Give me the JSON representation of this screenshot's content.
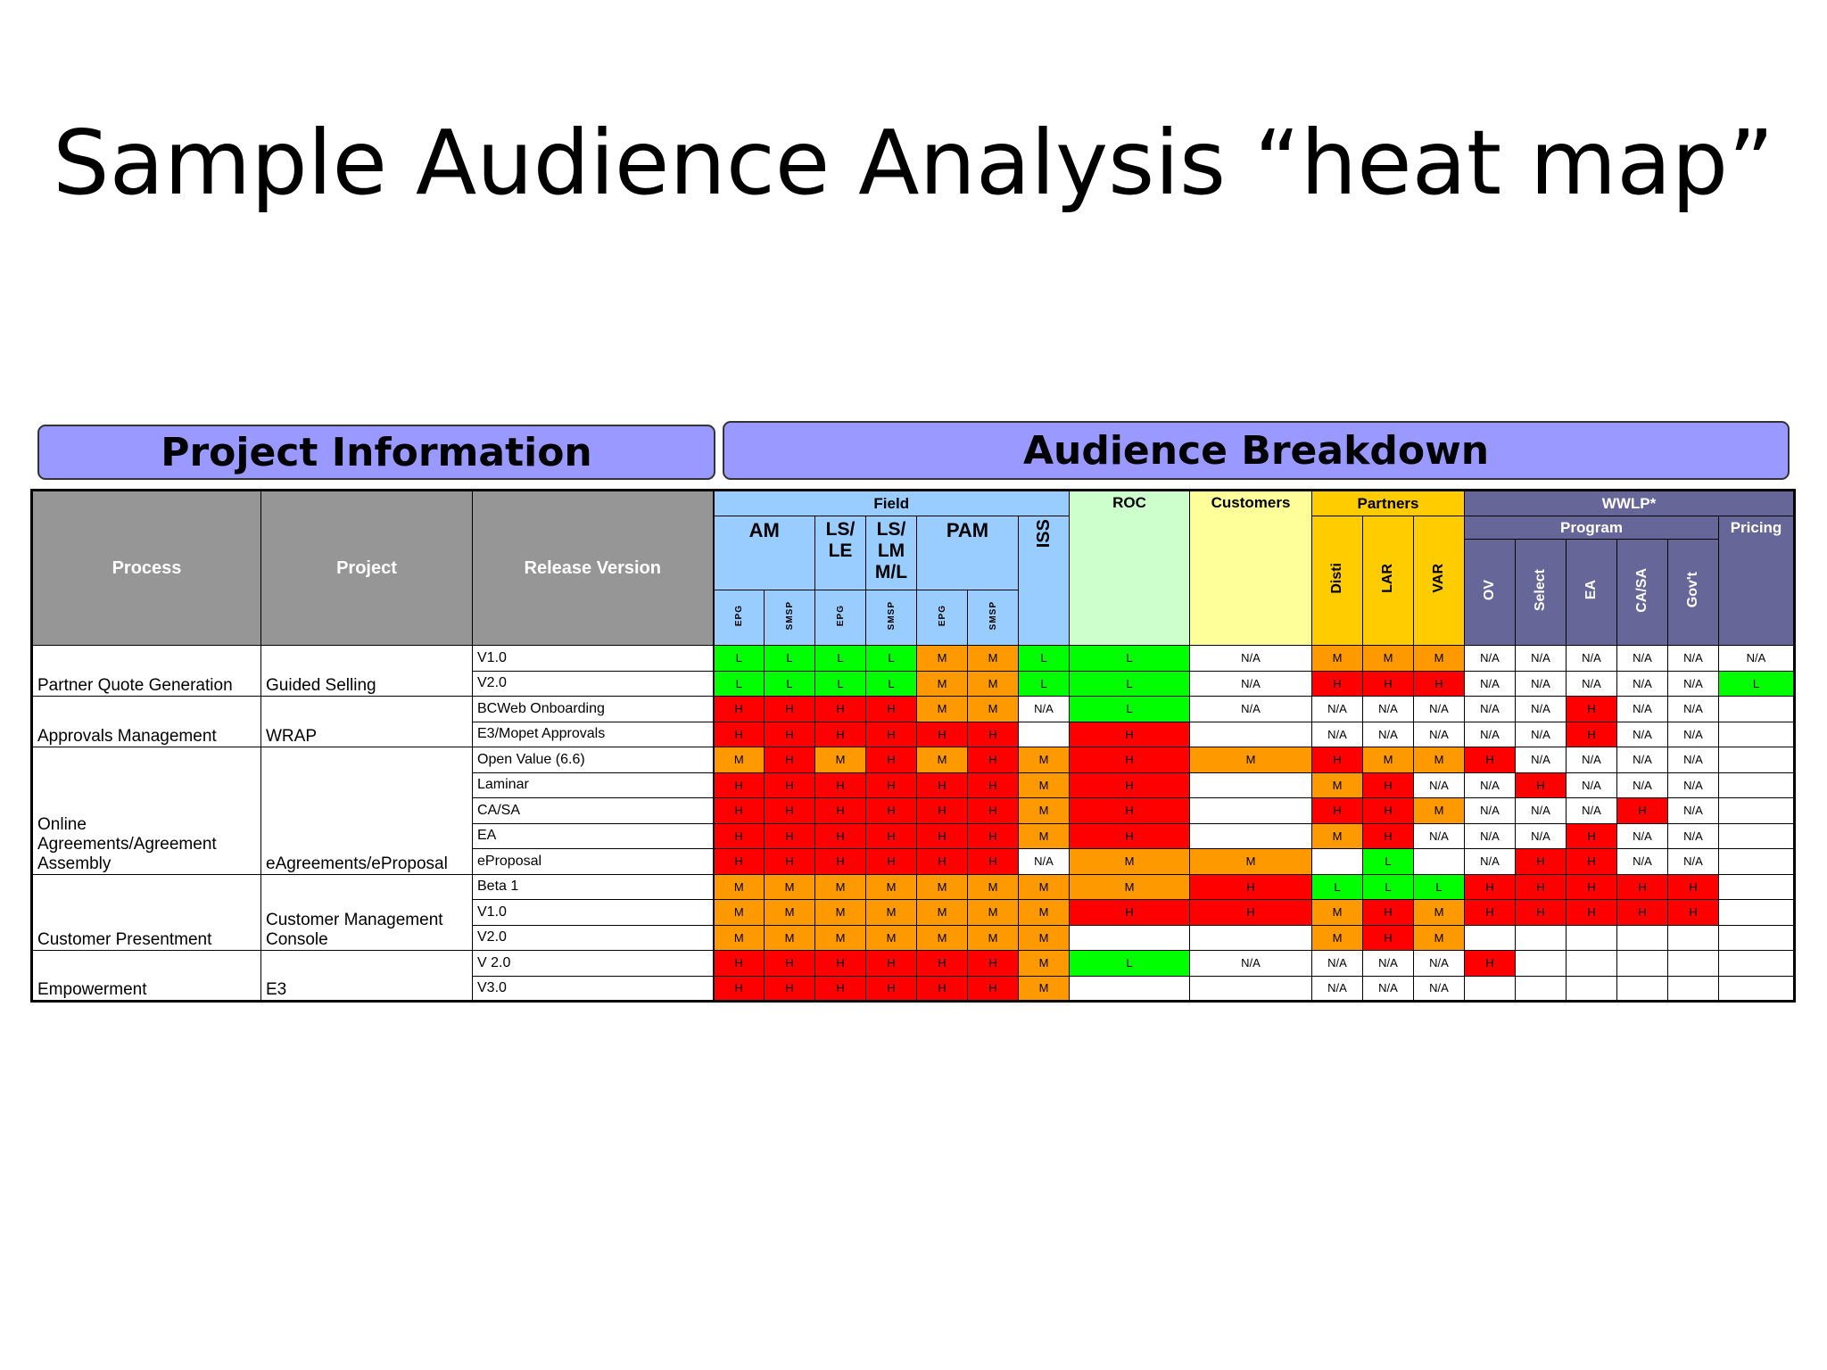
{
  "title": "Sample Audience Analysis “heat map”",
  "headers": {
    "project_information": "Project Information",
    "audience_breakdown": "Audience Breakdown"
  },
  "table": {
    "columns": {
      "process": "Process",
      "project": "Project",
      "release_version": "Release Version"
    },
    "groups": {
      "field": "Field",
      "am": "AM",
      "lsi_le": "LS/ LE",
      "lsi_lm": "LS/ LM M/L",
      "pam": "PAM",
      "iss": "ISS",
      "roc": "ROC",
      "customers": "Customers",
      "partners": "Partners",
      "wwlp": "WWLP*",
      "program": "Program",
      "pricing": "Pricing"
    },
    "subcols": {
      "epg": "EPG",
      "smsp": "SMSP",
      "disti": "Disti",
      "lar": "LAR",
      "var": "VAR",
      "ov": "OV",
      "select": "Select",
      "ea": "EA",
      "ca_sa": "CA/SA",
      "govt": "Gov't"
    },
    "rows": [
      {
        "release": "V1.0",
        "values": [
          "L",
          "L",
          "L",
          "L",
          "M",
          "M",
          "L",
          "L",
          "N/A",
          "M",
          "M",
          "M",
          "N/A",
          "N/A",
          "N/A",
          "N/A",
          "N/A",
          "N/A"
        ]
      },
      {
        "release": "V2.0",
        "values": [
          "L",
          "L",
          "L",
          "L",
          "M",
          "M",
          "L",
          "L",
          "N/A",
          "H",
          "H",
          "H",
          "N/A",
          "N/A",
          "N/A",
          "N/A",
          "N/A",
          "L"
        ]
      },
      {
        "release": "BCWeb Onboarding",
        "values": [
          "H",
          "H",
          "H",
          "H",
          "M",
          "M",
          "N/A",
          "L",
          "N/A",
          "N/A",
          "N/A",
          "N/A",
          "N/A",
          "N/A",
          "H",
          "N/A",
          "N/A",
          ""
        ]
      },
      {
        "release": "E3/Mopet Approvals",
        "values": [
          "H",
          "H",
          "H",
          "H",
          "H",
          "H",
          "",
          "H",
          "",
          "N/A",
          "N/A",
          "N/A",
          "N/A",
          "N/A",
          "H",
          "N/A",
          "N/A",
          ""
        ]
      },
      {
        "release": "Open Value (6.6)",
        "values": [
          "M",
          "H",
          "M",
          "H",
          "M",
          "H",
          "M",
          "H",
          "M",
          "H",
          "M",
          "M",
          "H",
          "N/A",
          "N/A",
          "N/A",
          "N/A",
          ""
        ]
      },
      {
        "release": "Laminar",
        "values": [
          "H",
          "H",
          "H",
          "H",
          "H",
          "H",
          "M",
          "H",
          "",
          "M",
          "H",
          "N/A",
          "N/A",
          "H",
          "N/A",
          "N/A",
          "N/A",
          ""
        ]
      },
      {
        "release": "CA/SA",
        "values": [
          "H",
          "H",
          "H",
          "H",
          "H",
          "H",
          "M",
          "H",
          "",
          "H",
          "H",
          "M",
          "N/A",
          "N/A",
          "N/A",
          "H",
          "N/A",
          ""
        ]
      },
      {
        "release": "EA",
        "values": [
          "H",
          "H",
          "H",
          "H",
          "H",
          "H",
          "M",
          "H",
          "",
          "M",
          "H",
          "N/A",
          "N/A",
          "N/A",
          "H",
          "N/A",
          "N/A",
          ""
        ]
      },
      {
        "release": "eProposal",
        "values": [
          "H",
          "H",
          "H",
          "H",
          "H",
          "H",
          "N/A",
          "M",
          "M",
          "",
          "L",
          "",
          "N/A",
          "H",
          "H",
          "N/A",
          "N/A",
          ""
        ]
      },
      {
        "release": "Beta 1",
        "values": [
          "M",
          "M",
          "M",
          "M",
          "M",
          "M",
          "M",
          "M",
          "H",
          "L",
          "L",
          "L",
          "H",
          "H",
          "H",
          "H",
          "H",
          ""
        ]
      },
      {
        "release": "V1.0",
        "values": [
          "M",
          "M",
          "M",
          "M",
          "M",
          "M",
          "M",
          "H",
          "H",
          "M",
          "H",
          "M",
          "H",
          "H",
          "H",
          "H",
          "H",
          ""
        ]
      },
      {
        "release": "V2.0",
        "values": [
          "M",
          "M",
          "M",
          "M",
          "M",
          "M",
          "M",
          "",
          "",
          "M",
          "H",
          "M",
          "",
          "",
          "",
          "",
          "",
          ""
        ]
      },
      {
        "release": "V 2.0",
        "values": [
          "H",
          "H",
          "H",
          "H",
          "H",
          "H",
          "M",
          "L",
          "N/A",
          "N/A",
          "N/A",
          "N/A",
          "H",
          "",
          "",
          "",
          "",
          ""
        ]
      },
      {
        "release": "V3.0",
        "values": [
          "H",
          "H",
          "H",
          "H",
          "H",
          "H",
          "M",
          "",
          "",
          "N/A",
          "N/A",
          "N/A",
          "",
          "",
          "",
          "",
          "",
          ""
        ]
      }
    ],
    "groups_info": [
      {
        "process": "Partner Quote Generation",
        "project": "Guided Selling",
        "rows": 2
      },
      {
        "process": "Approvals Management",
        "project": "WRAP",
        "rows": 2
      },
      {
        "process": "Online Agreements/Agreement Assembly",
        "project": "eAgreements/eProposal",
        "rows": 5
      },
      {
        "process": "Customer Presentment",
        "project": "Customer Management Console",
        "rows": 3
      },
      {
        "process": "Empowerment",
        "project": "E3",
        "rows": 2
      }
    ]
  },
  "colors": {
    "H": "#ff0000",
    "M": "#ff9900",
    "L": "#00ff00",
    "header_box": "#9999ff",
    "field": "#99ccff",
    "roc": "#ccffcc",
    "customers": "#ffff99",
    "partners": "#ffcc00",
    "wwlp": "#666699",
    "project_header": "#969696"
  }
}
